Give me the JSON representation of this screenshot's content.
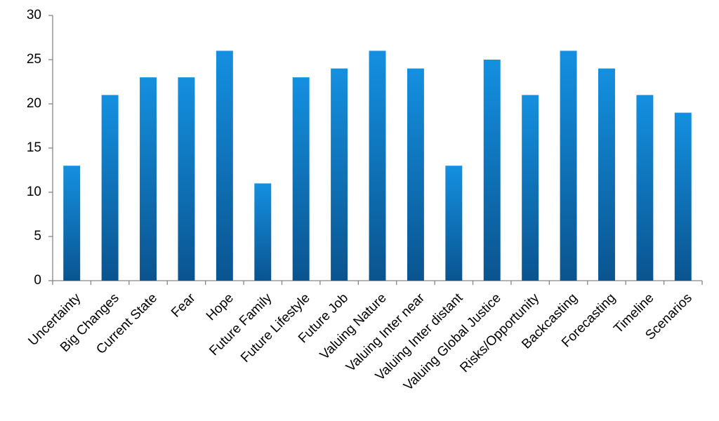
{
  "chart_data": {
    "type": "bar",
    "categories": [
      "Uncertainty",
      "Big Changes",
      "Current State",
      "Fear",
      "Hope",
      "Future Family",
      "Future Lifestyle",
      "Future Job",
      "Valuing Nature",
      "Valuing Inter near",
      "Valuing Inter distant",
      "Valuing Global Justice",
      "Risks/Opportunity",
      "Backcasting",
      "Forecasting",
      "Timeline",
      "Scenarios"
    ],
    "values": [
      13,
      21,
      23,
      23,
      26,
      11,
      23,
      24,
      26,
      24,
      13,
      25,
      21,
      26,
      24,
      21,
      19
    ],
    "color": "#1490e0",
    "ylim": [
      0,
      30
    ],
    "yticks": [
      0,
      5,
      10,
      15,
      20,
      25,
      30
    ],
    "grid": false
  }
}
